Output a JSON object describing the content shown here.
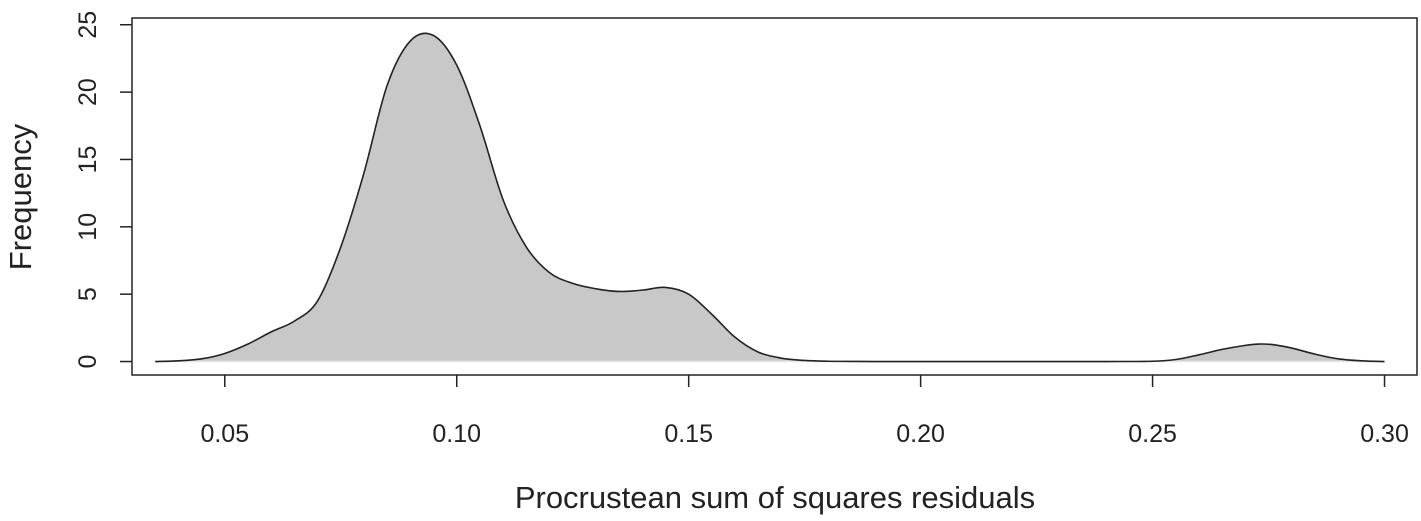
{
  "chart_data": {
    "type": "area",
    "title": "",
    "xlabel": "Procrustean sum of squares residuals",
    "ylabel": "Frequency",
    "xlim": [
      0.03,
      0.307
    ],
    "ylim": [
      -1,
      25.5
    ],
    "x_ticks": [
      {
        "value": 0.05,
        "label": "0.05"
      },
      {
        "value": 0.1,
        "label": "0.10"
      },
      {
        "value": 0.15,
        "label": "0.15"
      },
      {
        "value": 0.2,
        "label": "0.20"
      },
      {
        "value": 0.25,
        "label": "0.25"
      },
      {
        "value": 0.3,
        "label": "0.30"
      }
    ],
    "y_ticks": [
      {
        "value": 0,
        "label": "0"
      },
      {
        "value": 5,
        "label": "5"
      },
      {
        "value": 10,
        "label": "10"
      },
      {
        "value": 15,
        "label": "15"
      },
      {
        "value": 20,
        "label": "20"
      },
      {
        "value": 25,
        "label": "25"
      }
    ],
    "grid": false,
    "fill_color": "#c8c8c8",
    "line_color": "#222222",
    "series": [
      {
        "x": [
          0.035,
          0.04,
          0.045,
          0.05,
          0.055,
          0.06,
          0.065,
          0.07,
          0.075,
          0.08,
          0.085,
          0.09,
          0.095,
          0.1,
          0.105,
          0.11,
          0.115,
          0.12,
          0.125,
          0.13,
          0.135,
          0.14,
          0.145,
          0.15,
          0.155,
          0.16,
          0.165,
          0.17,
          0.175,
          0.18,
          0.185,
          0.19,
          0.2,
          0.22,
          0.24,
          0.25,
          0.255,
          0.26,
          0.265,
          0.27,
          0.273,
          0.276,
          0.28,
          0.285,
          0.29,
          0.295,
          0.3
        ],
        "y": [
          0.0,
          0.05,
          0.2,
          0.6,
          1.3,
          2.2,
          3.0,
          4.5,
          8.5,
          14.0,
          20.5,
          23.8,
          24.2,
          22.0,
          17.5,
          12.0,
          8.5,
          6.6,
          5.8,
          5.4,
          5.2,
          5.3,
          5.5,
          5.0,
          3.5,
          1.8,
          0.7,
          0.25,
          0.08,
          0.02,
          0.01,
          0.0,
          0.0,
          0.0,
          0.0,
          0.02,
          0.15,
          0.5,
          0.9,
          1.2,
          1.3,
          1.25,
          1.0,
          0.55,
          0.2,
          0.05,
          0.0
        ]
      }
    ]
  }
}
